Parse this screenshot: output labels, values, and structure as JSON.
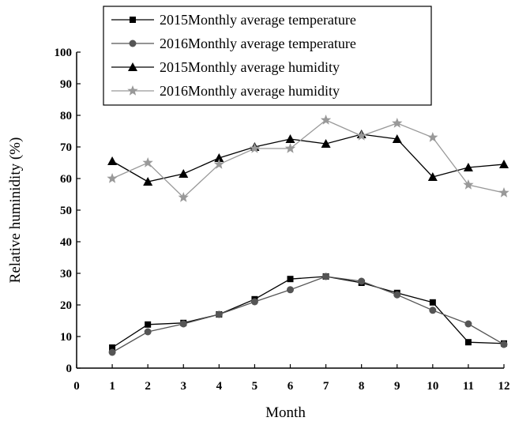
{
  "chart_data": {
    "type": "line",
    "xlabel": "Month",
    "ylabel": "Relative huminidity (%)",
    "xlim": [
      0,
      12
    ],
    "ylim": [
      0,
      100
    ],
    "x_ticks": [
      0,
      1,
      2,
      3,
      4,
      5,
      6,
      7,
      8,
      9,
      10,
      11,
      12
    ],
    "y_ticks": [
      0,
      10,
      20,
      30,
      40,
      50,
      60,
      70,
      80,
      90,
      100
    ],
    "grid": false,
    "legend_position": "top",
    "x": [
      1,
      2,
      3,
      4,
      5,
      6,
      7,
      8,
      9,
      10,
      11,
      12
    ],
    "series": [
      {
        "name": "2015Monthly average temperature",
        "marker": "square",
        "color": "#000000",
        "values": [
          6.5,
          13.8,
          14.3,
          17.0,
          21.8,
          28.2,
          29.0,
          27.0,
          23.8,
          20.8,
          8.2,
          7.8
        ]
      },
      {
        "name": "2016Monthly average temperature",
        "marker": "circle",
        "color": "#555555",
        "values": [
          5.0,
          11.5,
          14.0,
          17.0,
          21.0,
          24.8,
          29.0,
          27.5,
          23.2,
          18.3,
          14.0,
          7.5
        ]
      },
      {
        "name": "2015Monthly average humidity",
        "marker": "triangle",
        "color": "#000000",
        "values": [
          65.5,
          59.0,
          61.5,
          66.5,
          70.0,
          72.5,
          71.0,
          74.0,
          72.5,
          60.5,
          63.5,
          64.5
        ]
      },
      {
        "name": "2016Monthly average humidity",
        "marker": "star",
        "color": "#999999",
        "values": [
          60.0,
          65.0,
          54.0,
          64.5,
          69.5,
          69.5,
          78.5,
          73.5,
          77.5,
          73.0,
          58.0,
          55.5
        ]
      }
    ]
  }
}
